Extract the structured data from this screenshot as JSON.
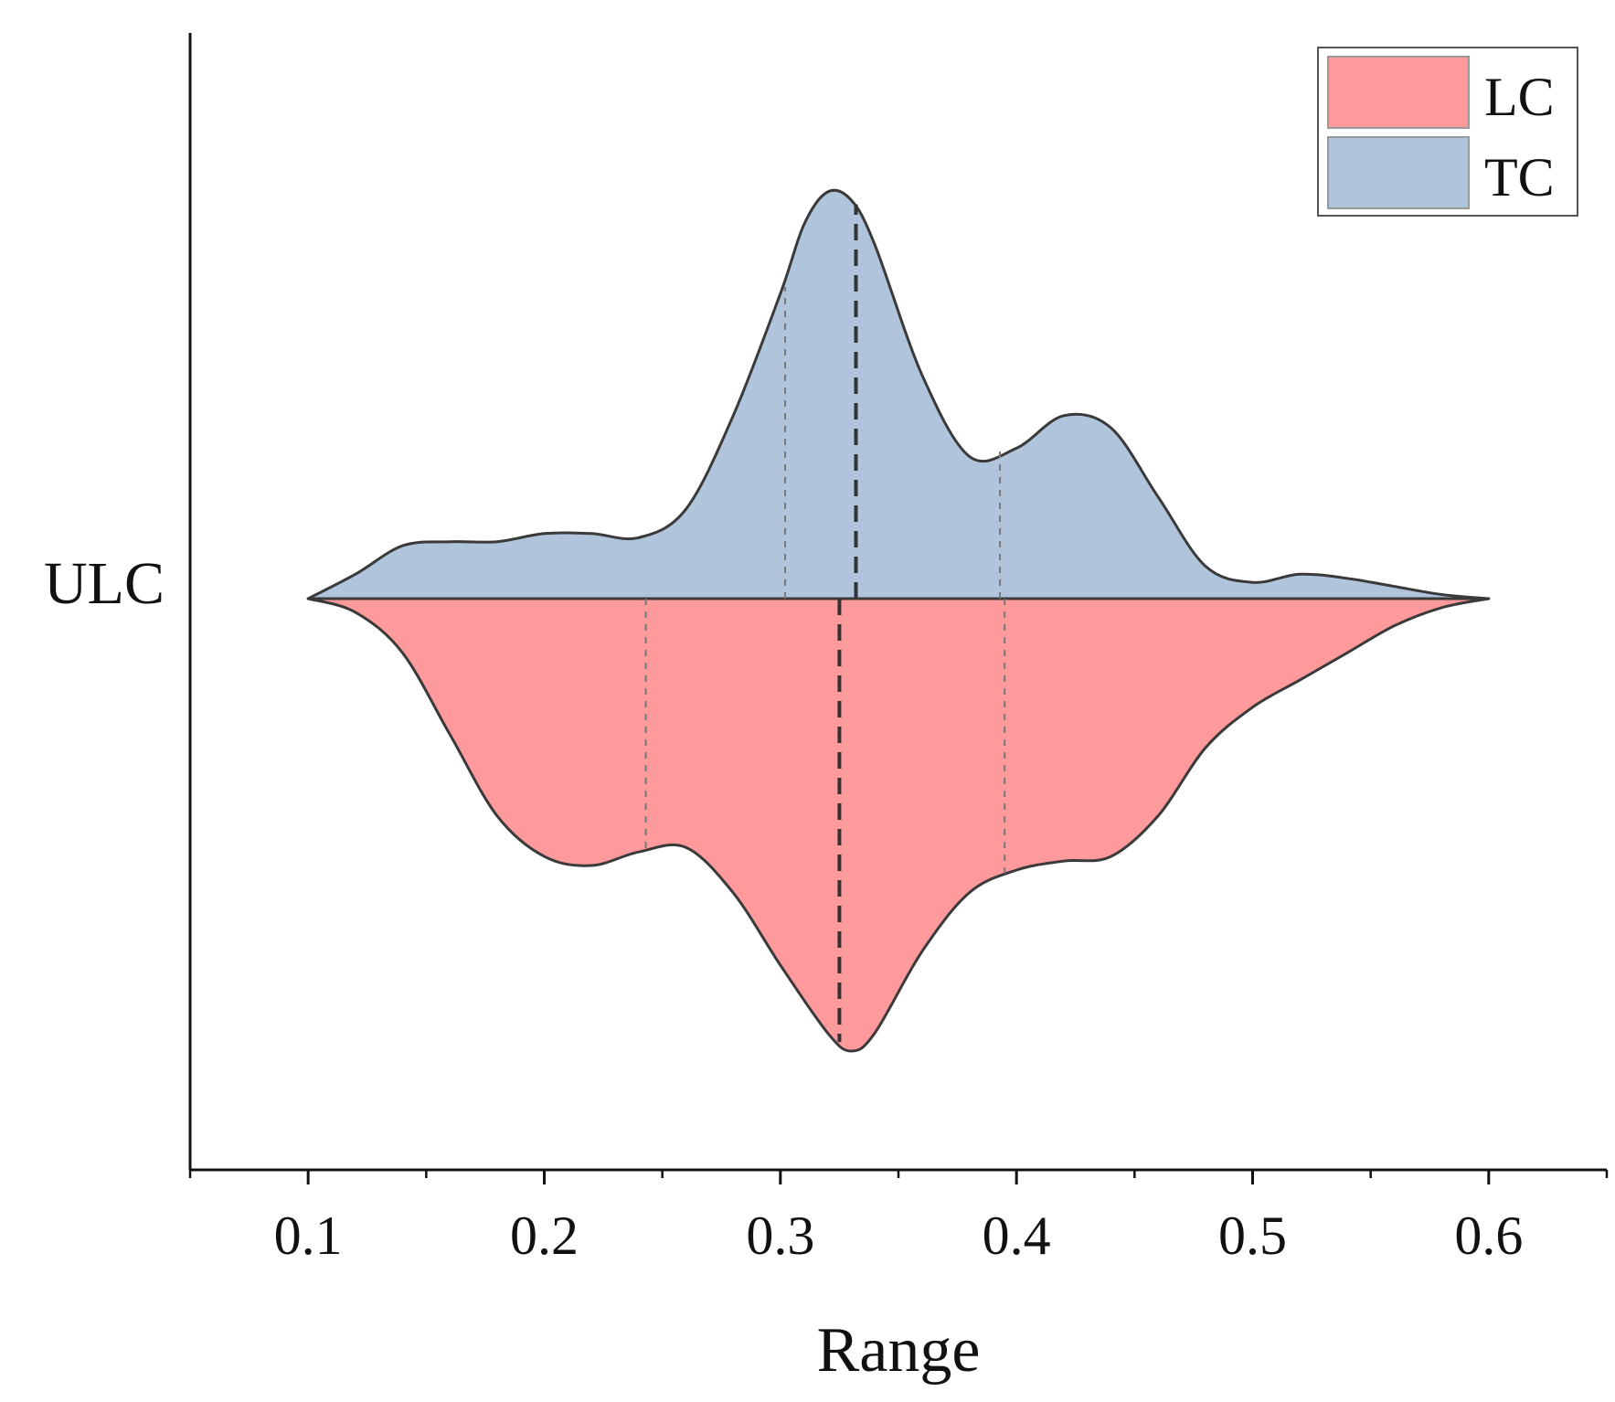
{
  "chart_data": {
    "type": "violin-split",
    "category": "ULC",
    "xlabel": "Range",
    "xlim": [
      0.05,
      0.65
    ],
    "x_ticks": [
      0.1,
      0.2,
      0.3,
      0.4,
      0.5,
      0.6
    ],
    "x_tick_labels": [
      "0.1",
      "0.2",
      "0.3",
      "0.4",
      "0.5",
      "0.6"
    ],
    "x_minor_ticks": [
      0.05,
      0.15,
      0.25,
      0.35,
      0.45,
      0.55,
      0.65
    ],
    "density_max": 1.0,
    "legend_position": "top-right",
    "series": [
      {
        "name": "LC",
        "side": "bottom",
        "color": "#FF9A9C",
        "density": [
          [
            0.1,
            0.0
          ],
          [
            0.12,
            0.03
          ],
          [
            0.14,
            0.12
          ],
          [
            0.16,
            0.3
          ],
          [
            0.18,
            0.48
          ],
          [
            0.2,
            0.57
          ],
          [
            0.22,
            0.59
          ],
          [
            0.24,
            0.56
          ],
          [
            0.26,
            0.55
          ],
          [
            0.28,
            0.65
          ],
          [
            0.3,
            0.81
          ],
          [
            0.32,
            0.96
          ],
          [
            0.33,
            1.0
          ],
          [
            0.34,
            0.96
          ],
          [
            0.36,
            0.78
          ],
          [
            0.38,
            0.65
          ],
          [
            0.4,
            0.6
          ],
          [
            0.42,
            0.58
          ],
          [
            0.44,
            0.57
          ],
          [
            0.46,
            0.48
          ],
          [
            0.48,
            0.33
          ],
          [
            0.5,
            0.24
          ],
          [
            0.52,
            0.18
          ],
          [
            0.54,
            0.12
          ],
          [
            0.56,
            0.06
          ],
          [
            0.58,
            0.02
          ],
          [
            0.6,
            0.0
          ]
        ],
        "median": 0.325,
        "q1": 0.243,
        "q3": 0.395
      },
      {
        "name": "TC",
        "side": "top",
        "color": "#B0C4DC",
        "density": [
          [
            0.1,
            0.0
          ],
          [
            0.12,
            0.06
          ],
          [
            0.14,
            0.13
          ],
          [
            0.16,
            0.14
          ],
          [
            0.18,
            0.14
          ],
          [
            0.2,
            0.16
          ],
          [
            0.22,
            0.16
          ],
          [
            0.24,
            0.15
          ],
          [
            0.26,
            0.22
          ],
          [
            0.28,
            0.45
          ],
          [
            0.3,
            0.75
          ],
          [
            0.31,
            0.92
          ],
          [
            0.32,
            1.0
          ],
          [
            0.33,
            0.98
          ],
          [
            0.34,
            0.87
          ],
          [
            0.36,
            0.55
          ],
          [
            0.38,
            0.35
          ],
          [
            0.4,
            0.37
          ],
          [
            0.42,
            0.45
          ],
          [
            0.44,
            0.42
          ],
          [
            0.46,
            0.25
          ],
          [
            0.48,
            0.08
          ],
          [
            0.5,
            0.04
          ],
          [
            0.52,
            0.06
          ],
          [
            0.54,
            0.05
          ],
          [
            0.56,
            0.03
          ],
          [
            0.58,
            0.01
          ],
          [
            0.6,
            0.0
          ]
        ],
        "median": 0.332,
        "q1": 0.302,
        "q3": 0.393
      }
    ]
  }
}
